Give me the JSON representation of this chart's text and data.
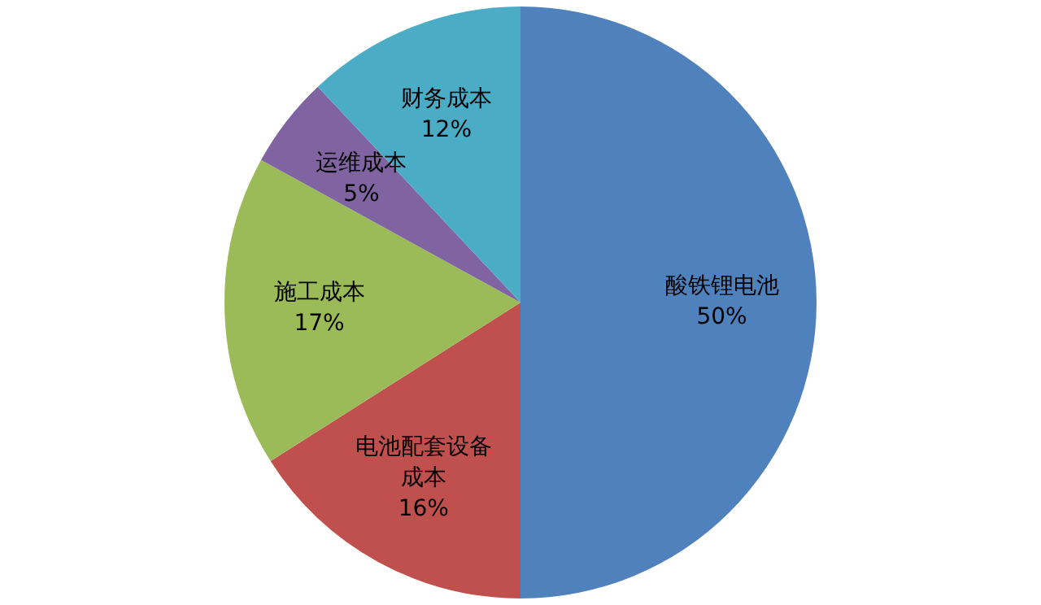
{
  "chart_data": {
    "type": "pie",
    "categories": [
      "酸铁锂电池",
      "电池配套设备成本",
      "施工成本",
      "运维成本",
      "财务成本"
    ],
    "values": [
      50,
      16,
      17,
      5,
      12
    ],
    "colors": [
      "#4f81bd",
      "#c0504d",
      "#9bbb59",
      "#8064a2",
      "#4bacc6"
    ],
    "value_labels": [
      "50%",
      "16%",
      "17%",
      "5%",
      "12%"
    ],
    "legend": false
  }
}
